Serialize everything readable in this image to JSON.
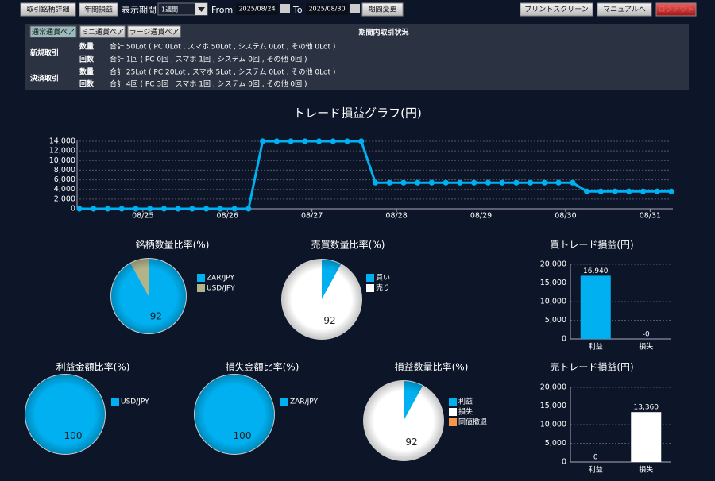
{
  "toolbar": {
    "buttons_left": [
      "取引銘柄詳細",
      "年間損益"
    ],
    "period_label": "表示期間",
    "period_select": "1週間",
    "from_label": "From",
    "from_date": "2025/08/24",
    "to_label": "To",
    "to_date": "2025/08/30",
    "apply_button": "期間変更",
    "buttons_right": [
      "プリントスクリーン",
      "マニュアルへ",
      "ログアウト"
    ]
  },
  "summary": {
    "tabs": [
      "通常通貨ペア",
      "ミニ通貨ペア",
      "ラージ通貨ペア"
    ],
    "title": "期間内取引状況",
    "groups": [
      {
        "label": "新規取引",
        "rows": [
          {
            "label": "数量",
            "text": "合計 50Lot ( PC 0Lot , スマホ 50Lot , システム 0Lot , その他 0Lot )"
          },
          {
            "label": "回数",
            "text": "合計 1回 ( PC 0回 , スマホ 1回 , システム 0回 , その他 0回 )"
          }
        ]
      },
      {
        "label": "決済取引",
        "rows": [
          {
            "label": "数量",
            "text": "合計 25Lot ( PC 20Lot , スマホ 5Lot , システム 0Lot , その他 0Lot )"
          },
          {
            "label": "回数",
            "text": "合計 4回 ( PC 3回 , スマホ 1回 , システム 0回 , その他 0回 )"
          }
        ]
      }
    ]
  },
  "chart_data": [
    {
      "type": "line",
      "title": "トレード損益グラフ(円)",
      "color": "#00b0f0",
      "grid": true,
      "categories": [
        null,
        null,
        null,
        null,
        null,
        null,
        null,
        null,
        null,
        null,
        null,
        null,
        null,
        null,
        null,
        null,
        null,
        null,
        null,
        null,
        null,
        null,
        null,
        null,
        null,
        null,
        null,
        null,
        null,
        null,
        null,
        null,
        null,
        null,
        null,
        null,
        null,
        null,
        null,
        null,
        null,
        null,
        null
      ],
      "values": [
        0,
        0,
        0,
        0,
        0,
        0,
        0,
        0,
        0,
        0,
        0,
        0,
        0,
        14000,
        14000,
        14000,
        14000,
        14000,
        14000,
        14000,
        14000,
        5400,
        5400,
        5400,
        5400,
        5400,
        5400,
        5400,
        5400,
        5400,
        5400,
        5400,
        5400,
        5400,
        5400,
        5400,
        3580,
        3580,
        3580,
        3580,
        3580,
        3580,
        3580
      ],
      "xticks": [
        {
          "value": 4.5,
          "label": "08/25"
        },
        {
          "value": 10.5,
          "label": "08/26"
        },
        {
          "value": 16.5,
          "label": "08/27"
        },
        {
          "value": 22.5,
          "label": "08/28"
        },
        {
          "value": 28.5,
          "label": "08/29"
        },
        {
          "value": 34.5,
          "label": "08/30"
        },
        {
          "value": 40.5,
          "label": "08/31"
        }
      ],
      "ylim": [
        0,
        14000
      ],
      "yticks": [
        0,
        {
          "value": 2000,
          "label": "2,000"
        },
        {
          "value": 4000,
          "label": "4,000"
        },
        {
          "value": 6000,
          "label": "6,000"
        },
        {
          "value": 8000,
          "label": "8,000"
        },
        {
          "value": 10000,
          "label": "10,000"
        },
        {
          "value": 12000,
          "label": "12,000"
        },
        {
          "value": 14000,
          "label": "14,000"
        }
      ]
    },
    {
      "type": "pie",
      "title": "銘柄数量比率(%)",
      "categories": [
        "ZAR/JPY",
        "USD/JPY"
      ],
      "values": [
        92,
        8
      ],
      "colors": [
        "#00b0f0",
        "#b3b38a"
      ]
    },
    {
      "type": "pie",
      "title": "売買数量比率(%)",
      "categories": [
        "買い",
        "売り"
      ],
      "values": [
        8,
        92
      ],
      "colors": [
        "#00b0f0",
        "#ffffff"
      ]
    },
    {
      "type": "pie",
      "title": "利益金額比率(%)",
      "categories": [
        "USD/JPY"
      ],
      "values": [
        100
      ],
      "colors": [
        "#00b0f0"
      ]
    },
    {
      "type": "pie",
      "title": "損失金額比率(%)",
      "categories": [
        "ZAR/JPY"
      ],
      "values": [
        100
      ],
      "colors": [
        "#00b0f0"
      ]
    },
    {
      "type": "pie",
      "title": "損益数量比率(%)",
      "categories": [
        "利益",
        "損失",
        "同値撤退"
      ],
      "values": [
        8,
        92,
        0
      ],
      "colors": [
        "#00b0f0",
        "#ffffff",
        "#f79646"
      ]
    },
    {
      "type": "bar",
      "title": "買トレード損益(円)",
      "categories": [
        "利益",
        "損失"
      ],
      "values": [
        16940,
        0
      ],
      "value_labels": [
        "16,940",
        "-0"
      ],
      "colors": [
        "#00b0f0",
        "#ffffff"
      ],
      "grid": true,
      "ylim": [
        0,
        20000
      ],
      "yticks": [
        0,
        {
          "value": 5000,
          "label": "5,000"
        },
        {
          "value": 10000,
          "label": "10,000"
        },
        {
          "value": 15000,
          "label": "15,000"
        },
        {
          "value": 20000,
          "label": "20,000"
        }
      ]
    },
    {
      "type": "bar",
      "title": "売トレード損益(円)",
      "categories": [
        "利益",
        "損失"
      ],
      "values": [
        0,
        13360
      ],
      "value_labels": [
        "0",
        "13,360"
      ],
      "colors": [
        "#00b0f0",
        "#ffffff"
      ],
      "grid": true,
      "ylim": [
        0,
        20000
      ],
      "yticks": [
        0,
        {
          "value": 5000,
          "label": "5,000"
        },
        {
          "value": 10000,
          "label": "10,000"
        },
        {
          "value": 15000,
          "label": "15,000"
        },
        {
          "value": 20000,
          "label": "20,000"
        }
      ]
    }
  ]
}
